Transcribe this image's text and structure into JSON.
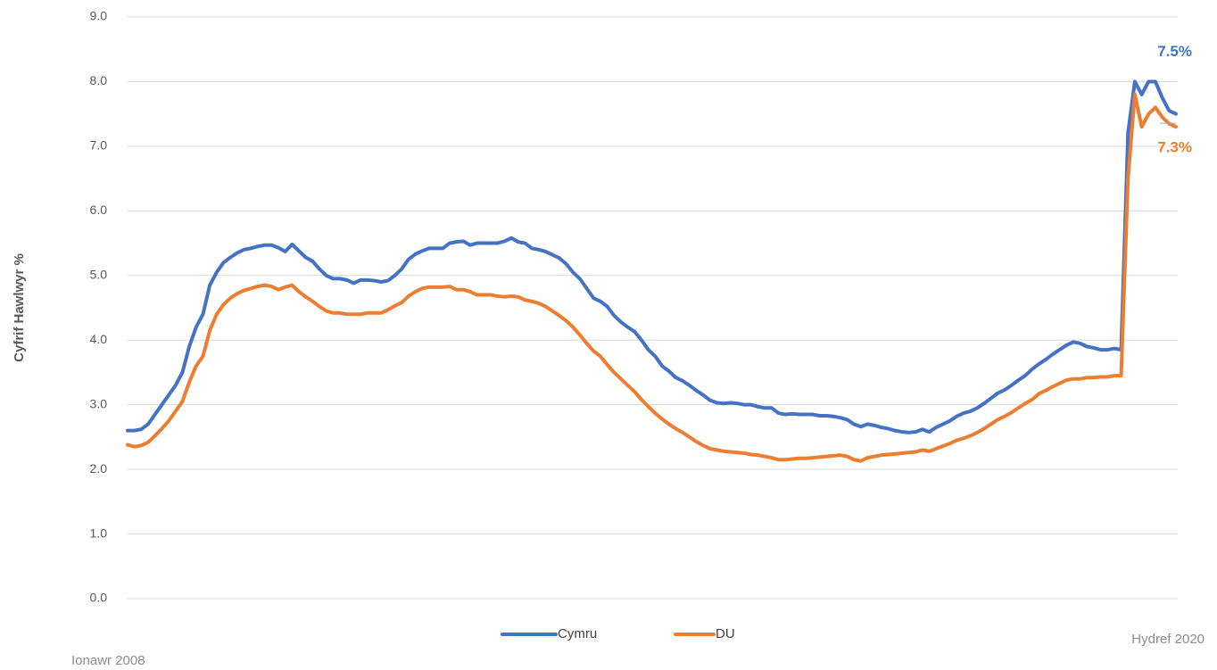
{
  "chart_data": {
    "type": "line",
    "y_axis_label": "Cyfrif Hawlwyr %",
    "categories": [
      "Ionawr 2008",
      null,
      null,
      null,
      null,
      null,
      null,
      null,
      null,
      null,
      null,
      null,
      null,
      null,
      null,
      null,
      null,
      null,
      null,
      null,
      null,
      null,
      null,
      null,
      null,
      null,
      null,
      null,
      null,
      null,
      null,
      null,
      null,
      null,
      null,
      null,
      null,
      null,
      null,
      null,
      null,
      null,
      null,
      null,
      null,
      null,
      null,
      null,
      null,
      null,
      null,
      null,
      null,
      null,
      null,
      null,
      null,
      null,
      null,
      null,
      null,
      null,
      null,
      null,
      null,
      null,
      null,
      null,
      null,
      null,
      null,
      null,
      null,
      null,
      null,
      null,
      null,
      null,
      null,
      null,
      null,
      null,
      null,
      null,
      null,
      null,
      null,
      null,
      null,
      null,
      null,
      null,
      null,
      null,
      null,
      null,
      null,
      null,
      null,
      null,
      null,
      null,
      null,
      null,
      null,
      null,
      null,
      null,
      null,
      null,
      null,
      null,
      null,
      null,
      null,
      null,
      null,
      null,
      null,
      null,
      null,
      null,
      null,
      null,
      null,
      null,
      null,
      null,
      null,
      null,
      null,
      null,
      null,
      null,
      null,
      null,
      null,
      null,
      null,
      null,
      null,
      null,
      null,
      null,
      null,
      null,
      null,
      null,
      null,
      null,
      null,
      null,
      null,
      "Hydref 2020"
    ],
    "series": [
      {
        "name": "Cymru",
        "color": "#4472c4",
        "values": [
          2.6,
          2.6,
          2.62,
          2.7,
          2.85,
          3.0,
          3.15,
          3.3,
          3.5,
          3.9,
          4.2,
          4.4,
          4.85,
          5.05,
          5.2,
          5.28,
          5.35,
          5.4,
          5.42,
          5.45,
          5.47,
          5.47,
          5.43,
          5.37,
          5.48,
          5.38,
          5.28,
          5.22,
          5.1,
          5.0,
          4.95,
          4.95,
          4.93,
          4.88,
          4.93,
          4.93,
          4.92,
          4.9,
          4.92,
          5.0,
          5.1,
          5.25,
          5.33,
          5.38,
          5.42,
          5.42,
          5.42,
          5.5,
          5.52,
          5.53,
          5.47,
          5.5,
          5.5,
          5.5,
          5.5,
          5.53,
          5.58,
          5.52,
          5.5,
          5.42,
          5.4,
          5.37,
          5.32,
          5.27,
          5.18,
          5.05,
          4.95,
          4.8,
          4.65,
          4.6,
          4.52,
          4.38,
          4.28,
          4.2,
          4.13,
          4.0,
          3.85,
          3.75,
          3.6,
          3.52,
          3.42,
          3.37,
          3.3,
          3.22,
          3.15,
          3.07,
          3.03,
          3.02,
          3.03,
          3.02,
          3.0,
          3.0,
          2.97,
          2.95,
          2.95,
          2.87,
          2.85,
          2.86,
          2.85,
          2.85,
          2.85,
          2.83,
          2.83,
          2.82,
          2.8,
          2.77,
          2.7,
          2.66,
          2.7,
          2.68,
          2.65,
          2.63,
          2.6,
          2.58,
          2.57,
          2.58,
          2.62,
          2.58,
          2.65,
          2.7,
          2.75,
          2.82,
          2.87,
          2.9,
          2.95,
          3.02,
          3.1,
          3.18,
          3.23,
          3.3,
          3.38,
          3.45,
          3.55,
          3.63,
          3.7,
          3.78,
          3.85,
          3.92,
          3.97,
          3.95,
          3.9,
          3.88,
          3.85,
          3.85,
          3.87,
          3.85,
          7.2,
          8.0,
          7.8,
          8.0,
          8.0,
          7.75,
          7.55,
          7.5
        ],
        "value_labels": [
          null,
          null,
          null,
          null,
          null,
          null,
          null,
          null,
          null,
          null,
          null,
          null,
          null,
          null,
          null,
          null,
          null,
          null,
          null,
          null,
          null,
          null,
          null,
          null,
          null,
          null,
          null,
          null,
          null,
          null,
          null,
          null,
          null,
          null,
          null,
          null,
          null,
          null,
          null,
          null,
          null,
          null,
          null,
          null,
          null,
          null,
          null,
          null,
          null,
          null,
          null,
          null,
          null,
          null,
          null,
          null,
          null,
          null,
          null,
          null,
          null,
          null,
          null,
          null,
          null,
          null,
          null,
          null,
          null,
          null,
          null,
          null,
          null,
          null,
          null,
          null,
          null,
          null,
          null,
          null,
          null,
          null,
          null,
          null,
          null,
          null,
          null,
          null,
          null,
          null,
          null,
          null,
          null,
          null,
          null,
          null,
          null,
          null,
          null,
          null,
          null,
          null,
          null,
          null,
          null,
          null,
          null,
          null,
          null,
          null,
          null,
          null,
          null,
          null,
          null,
          null,
          null,
          null,
          null,
          null,
          null,
          null,
          null,
          null,
          null,
          null,
          null,
          null,
          null,
          null,
          null,
          null,
          null,
          null,
          null,
          null,
          null,
          null,
          null,
          null,
          null,
          null,
          null,
          null,
          null,
          null,
          null,
          null,
          null,
          null,
          null,
          null,
          null,
          "7.5%"
        ]
      },
      {
        "name": "DU",
        "color": "#ed7d31",
        "values": [
          2.38,
          2.35,
          2.37,
          2.42,
          2.52,
          2.63,
          2.75,
          2.9,
          3.05,
          3.35,
          3.6,
          3.75,
          4.15,
          4.4,
          4.55,
          4.65,
          4.72,
          4.77,
          4.8,
          4.83,
          4.85,
          4.83,
          4.78,
          4.82,
          4.85,
          4.75,
          4.67,
          4.6,
          4.52,
          4.45,
          4.42,
          4.42,
          4.4,
          4.4,
          4.4,
          4.42,
          4.42,
          4.42,
          4.47,
          4.53,
          4.58,
          4.68,
          4.75,
          4.8,
          4.82,
          4.82,
          4.82,
          4.83,
          4.78,
          4.78,
          4.75,
          4.7,
          4.7,
          4.7,
          4.68,
          4.67,
          4.68,
          4.67,
          4.62,
          4.6,
          4.57,
          4.52,
          4.45,
          4.38,
          4.3,
          4.2,
          4.08,
          3.95,
          3.83,
          3.75,
          3.62,
          3.5,
          3.4,
          3.3,
          3.2,
          3.08,
          2.97,
          2.87,
          2.78,
          2.7,
          2.63,
          2.57,
          2.5,
          2.43,
          2.37,
          2.32,
          2.3,
          2.28,
          2.27,
          2.26,
          2.25,
          2.23,
          2.22,
          2.2,
          2.18,
          2.15,
          2.15,
          2.16,
          2.17,
          2.17,
          2.18,
          2.19,
          2.2,
          2.21,
          2.22,
          2.2,
          2.15,
          2.13,
          2.18,
          2.2,
          2.22,
          2.23,
          2.24,
          2.25,
          2.26,
          2.27,
          2.3,
          2.28,
          2.32,
          2.36,
          2.4,
          2.45,
          2.48,
          2.52,
          2.57,
          2.63,
          2.7,
          2.77,
          2.82,
          2.88,
          2.95,
          3.02,
          3.08,
          3.17,
          3.22,
          3.28,
          3.33,
          3.38,
          3.4,
          3.4,
          3.42,
          3.42,
          3.43,
          3.43,
          3.45,
          3.45,
          6.5,
          7.8,
          7.3,
          7.5,
          7.6,
          7.45,
          7.35,
          7.3
        ],
        "value_labels": [
          null,
          null,
          null,
          null,
          null,
          null,
          null,
          null,
          null,
          null,
          null,
          null,
          null,
          null,
          null,
          null,
          null,
          null,
          null,
          null,
          null,
          null,
          null,
          null,
          null,
          null,
          null,
          null,
          null,
          null,
          null,
          null,
          null,
          null,
          null,
          null,
          null,
          null,
          null,
          null,
          null,
          null,
          null,
          null,
          null,
          null,
          null,
          null,
          null,
          null,
          null,
          null,
          null,
          null,
          null,
          null,
          null,
          null,
          null,
          null,
          null,
          null,
          null,
          null,
          null,
          null,
          null,
          null,
          null,
          null,
          null,
          null,
          null,
          null,
          null,
          null,
          null,
          null,
          null,
          null,
          null,
          null,
          null,
          null,
          null,
          null,
          null,
          null,
          null,
          null,
          null,
          null,
          null,
          null,
          null,
          null,
          null,
          null,
          null,
          null,
          null,
          null,
          null,
          null,
          null,
          null,
          null,
          null,
          null,
          null,
          null,
          null,
          null,
          null,
          null,
          null,
          null,
          null,
          null,
          null,
          null,
          null,
          null,
          null,
          null,
          null,
          null,
          null,
          null,
          null,
          null,
          null,
          null,
          null,
          null,
          null,
          null,
          null,
          null,
          null,
          null,
          null,
          null,
          null,
          null,
          null,
          null,
          null,
          null,
          null,
          null,
          null,
          null,
          "7.3%"
        ]
      }
    ],
    "ylim": [
      0,
      9
    ],
    "yticks": [
      {
        "value": 0,
        "label": "0.0"
      },
      {
        "value": 1,
        "label": "1.0"
      },
      {
        "value": 2,
        "label": "2.0"
      },
      {
        "value": 3,
        "label": "3.0"
      },
      {
        "value": 4,
        "label": "4.0"
      },
      {
        "value": 5,
        "label": "5.0"
      },
      {
        "value": 6,
        "label": "6.0"
      },
      {
        "value": 7,
        "label": "7.0"
      },
      {
        "value": 8,
        "label": "8.0"
      },
      {
        "value": 9,
        "label": "9.0"
      }
    ],
    "grid": true,
    "legend": "bottom"
  }
}
